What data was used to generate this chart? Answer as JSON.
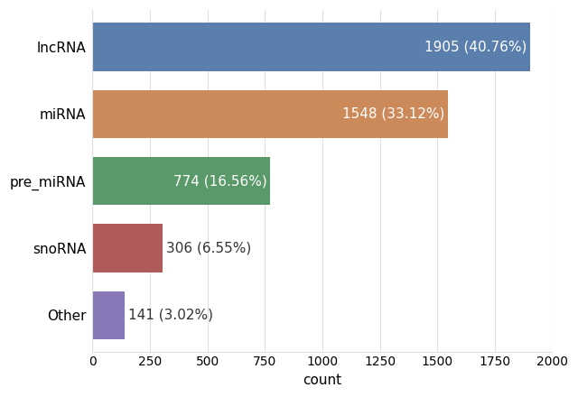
{
  "categories": [
    "lncRNA",
    "miRNA",
    "pre_miRNA",
    "snoRNA",
    "Other"
  ],
  "values": [
    1905,
    1548,
    774,
    306,
    141
  ],
  "labels": [
    "1905 (40.76%)",
    "1548 (33.12%)",
    "774 (16.56%)",
    "306 (6.55%)",
    "141 (3.02%)"
  ],
  "bar_colors": [
    "#5b7fad",
    "#cc8a5a",
    "#5a9a6a",
    "#b05a5a",
    "#8878b8"
  ],
  "xlabel": "count",
  "xlim": [
    0,
    2000
  ],
  "xticks": [
    0,
    250,
    500,
    750,
    1000,
    1250,
    1500,
    1750,
    2000
  ],
  "fig_background": "#ffffff",
  "axes_background": "#ffffff",
  "grid_color": "#e0e0e0",
  "label_fontsize": 11,
  "tick_fontsize": 10,
  "bar_height": 0.72,
  "label_inside_threshold": 500,
  "inside_label_color": "white",
  "outside_label_color": "#333333"
}
